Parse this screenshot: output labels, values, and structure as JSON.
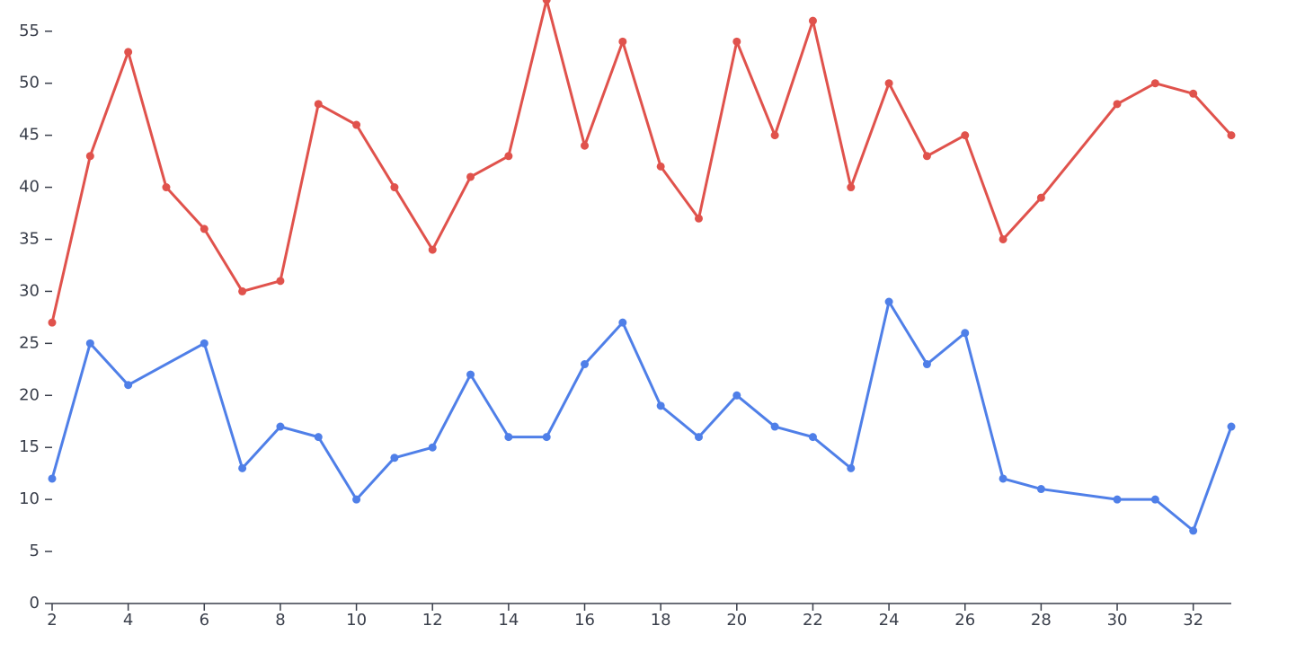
{
  "chart_data": {
    "type": "line",
    "title": "",
    "xlabel": "",
    "ylabel": "",
    "xlim": [
      2,
      33
    ],
    "ylim": [
      0,
      58
    ],
    "x_ticks": [
      2,
      4,
      6,
      8,
      10,
      12,
      14,
      16,
      18,
      20,
      22,
      24,
      26,
      28,
      30,
      32
    ],
    "y_ticks": [
      0,
      5,
      10,
      15,
      20,
      25,
      30,
      35,
      40,
      45,
      50,
      55
    ],
    "grid": false,
    "series": [
      {
        "color": "#e0524c",
        "points": [
          [
            2,
            27
          ],
          [
            3,
            43
          ],
          [
            4,
            53
          ],
          [
            5,
            40
          ],
          [
            6,
            36
          ],
          [
            7,
            30
          ],
          [
            8,
            31
          ],
          [
            9,
            48
          ],
          [
            10,
            46
          ],
          [
            11,
            40
          ],
          [
            12,
            34
          ],
          [
            13,
            41
          ],
          [
            14,
            43
          ],
          [
            15,
            58
          ],
          [
            16,
            44
          ],
          [
            17,
            54
          ],
          [
            18,
            42
          ],
          [
            19,
            37
          ],
          [
            20,
            54
          ],
          [
            21,
            45
          ],
          [
            22,
            56
          ],
          [
            23,
            40
          ],
          [
            24,
            50
          ],
          [
            25,
            43
          ],
          [
            26,
            45
          ],
          [
            27,
            35
          ],
          [
            28,
            39
          ],
          [
            30,
            48
          ],
          [
            31,
            50
          ],
          [
            32,
            49
          ],
          [
            33,
            45
          ]
        ]
      },
      {
        "color": "#4f7fe8",
        "points": [
          [
            2,
            12
          ],
          [
            3,
            25
          ],
          [
            4,
            21
          ],
          [
            6,
            25
          ],
          [
            7,
            13
          ],
          [
            8,
            17
          ],
          [
            9,
            16
          ],
          [
            10,
            10
          ],
          [
            11,
            14
          ],
          [
            12,
            15
          ],
          [
            13,
            22
          ],
          [
            14,
            16
          ],
          [
            15,
            16
          ],
          [
            16,
            23
          ],
          [
            17,
            27
          ],
          [
            18,
            19
          ],
          [
            19,
            16
          ],
          [
            20,
            20
          ],
          [
            21,
            17
          ],
          [
            22,
            16
          ],
          [
            23,
            13
          ],
          [
            24,
            29
          ],
          [
            25,
            23
          ],
          [
            26,
            26
          ],
          [
            27,
            12
          ],
          [
            28,
            11
          ],
          [
            30,
            10
          ],
          [
            31,
            10
          ],
          [
            32,
            7
          ],
          [
            33,
            17
          ]
        ]
      }
    ]
  }
}
